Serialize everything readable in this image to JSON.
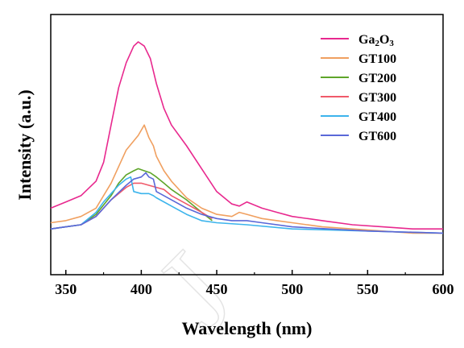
{
  "chart_data": {
    "type": "line",
    "title": "",
    "xlabel": "Wavelength (nm)",
    "ylabel": "Intensity (a.u.)",
    "xlim": [
      340,
      600
    ],
    "ylim": [
      0,
      100
    ],
    "x_ticks": [
      "350",
      "400",
      "450",
      "500",
      "550",
      "600"
    ],
    "y_ticks_shown": false,
    "grid": false,
    "legend_position": "top-right",
    "series": [
      {
        "name": "Ga2O3",
        "legend_base": "Ga",
        "legend_sub1": "2",
        "legend_mid": "O",
        "legend_sub2": "3",
        "color": "#e8288e",
        "x": [
          340,
          350,
          360,
          370,
          375,
          380,
          385,
          390,
          395,
          398,
          402,
          406,
          410,
          415,
          420,
          430,
          440,
          450,
          460,
          465,
          470,
          480,
          490,
          500,
          520,
          540,
          560,
          580,
          600
        ],
        "y": [
          20,
          23,
          26,
          33,
          42,
          60,
          78,
          90,
          98,
          100,
          98,
          92,
          80,
          68,
          60,
          50,
          39,
          28,
          22,
          21,
          23,
          20,
          18,
          16,
          14,
          12,
          11,
          10,
          10
        ]
      },
      {
        "name": "GT100",
        "color": "#f0a060",
        "x": [
          340,
          350,
          360,
          370,
          380,
          390,
          398,
          402,
          405,
          408,
          410,
          415,
          420,
          430,
          440,
          450,
          460,
          465,
          470,
          480,
          490,
          500,
          520,
          540,
          560,
          580,
          600
        ],
        "y": [
          13,
          14,
          16,
          20,
          32,
          48,
          55,
          60,
          54,
          50,
          45,
          38,
          33,
          25,
          20,
          17,
          16,
          18,
          17,
          15,
          14,
          13,
          11,
          10,
          9,
          8,
          8
        ]
      },
      {
        "name": "GT200",
        "color": "#5ea52a",
        "x": [
          340,
          350,
          360,
          370,
          380,
          385,
          390,
          395,
          398,
          402,
          406,
          410,
          415,
          420,
          430,
          440,
          447
        ],
        "y": [
          10,
          11,
          12,
          17,
          26,
          32,
          36,
          38,
          39,
          38,
          37,
          35,
          32,
          29,
          24,
          18,
          14
        ]
      },
      {
        "name": "GT300",
        "color": "#f05a6a",
        "x": [
          340,
          350,
          360,
          370,
          380,
          390,
          395,
          400,
          405,
          410,
          415,
          420,
          430,
          440,
          447
        ],
        "y": [
          10,
          11,
          12,
          16,
          24,
          30,
          32,
          32,
          31,
          30,
          29,
          26,
          22,
          18,
          15
        ]
      },
      {
        "name": "GT400",
        "color": "#3cb4ec",
        "x": [
          340,
          350,
          360,
          370,
          375,
          380,
          385,
          390,
          393,
          395,
          400,
          405,
          408,
          410,
          420,
          430,
          440,
          450,
          470,
          500,
          550,
          600
        ],
        "y": [
          10,
          11,
          12,
          18,
          23,
          27,
          31,
          34,
          35,
          28,
          27,
          27,
          26,
          25,
          21,
          17,
          14,
          13,
          12,
          10,
          9,
          8
        ]
      },
      {
        "name": "GT600",
        "color": "#5a68d8",
        "x": [
          340,
          350,
          360,
          370,
          380,
          390,
          395,
          400,
          403,
          405,
          408,
          410,
          415,
          420,
          430,
          440,
          450,
          460,
          470,
          480,
          500,
          550,
          600
        ],
        "y": [
          10,
          11,
          12,
          16,
          24,
          31,
          34,
          35,
          37,
          35,
          34,
          28,
          26,
          24,
          20,
          17,
          15,
          14,
          14,
          13,
          11,
          9,
          8
        ]
      }
    ]
  }
}
